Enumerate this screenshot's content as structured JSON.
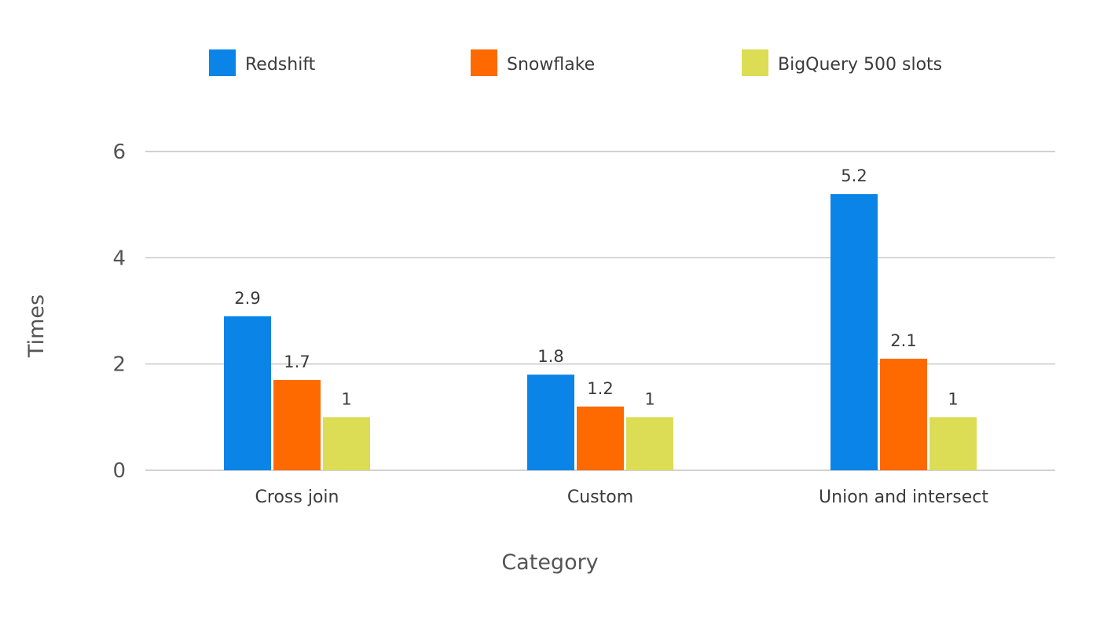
{
  "chart_data": {
    "type": "bar",
    "title": "",
    "xlabel": "Category",
    "ylabel": "Times",
    "categories": [
      "Cross join",
      "Custom",
      "Union and intersect"
    ],
    "series": [
      {
        "name": "Redshift",
        "color": "#0a84e6",
        "values": [
          2.9,
          1.8,
          5.2
        ],
        "labels": [
          "2.9",
          "1.8",
          "5.2"
        ]
      },
      {
        "name": "Snowflake",
        "color": "#ff6a00",
        "values": [
          1.7,
          1.2,
          2.1
        ],
        "labels": [
          "1.7",
          "1.2",
          "2.1"
        ]
      },
      {
        "name": "BigQuery 500 slots",
        "color": "#dcdc55",
        "values": [
          1,
          1,
          1
        ],
        "labels": [
          "1",
          "1",
          "1"
        ]
      }
    ],
    "ylim": [
      0,
      6
    ],
    "yticks": [
      0,
      2,
      4,
      6
    ],
    "grid": true,
    "legend_position": "top"
  }
}
